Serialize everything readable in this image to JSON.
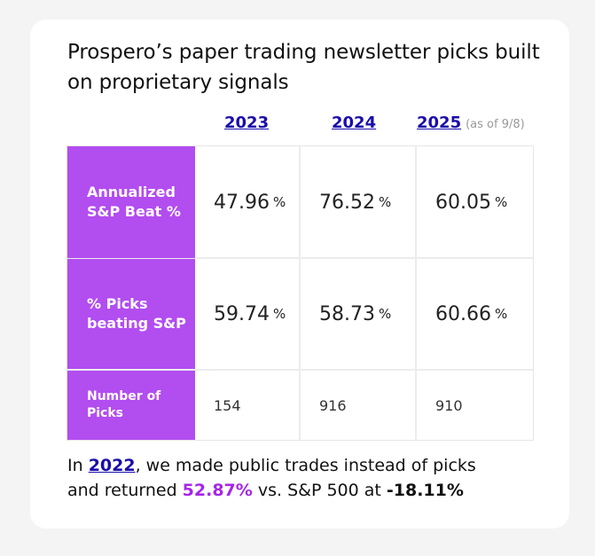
{
  "title": "Prospero’s paper trading newsletter picks built on proprietary signals",
  "years": [
    {
      "label": "2023",
      "note": ""
    },
    {
      "label": "2024",
      "note": ""
    },
    {
      "label": "2025",
      "note": "(as of 9/8)"
    }
  ],
  "rows": [
    {
      "label_line1": "Annualized",
      "label_line2": "S&P Beat %",
      "values": [
        "47.96",
        "76.52",
        "60.05"
      ],
      "unit": "%"
    },
    {
      "label_line1": "% Picks",
      "label_line2": "beating S&P",
      "values": [
        "59.74",
        "58.73",
        "60.66"
      ],
      "unit": "%"
    },
    {
      "label_line1": "Number of",
      "label_line2": "Picks",
      "values": [
        "154",
        "916",
        "910"
      ],
      "unit": ""
    }
  ],
  "footer": {
    "prefix": "In ",
    "year_link": "2022",
    "mid1": ", we made public trades instead of picks",
    "mid2": "and returned ",
    "return_value": "52.87%",
    "mid3": " vs. S&P 500 at ",
    "sp_value": "-18.11%"
  },
  "colors": {
    "header_bg": "#b24df0",
    "link": "#1a0dab",
    "highlight": "#a626e6"
  }
}
